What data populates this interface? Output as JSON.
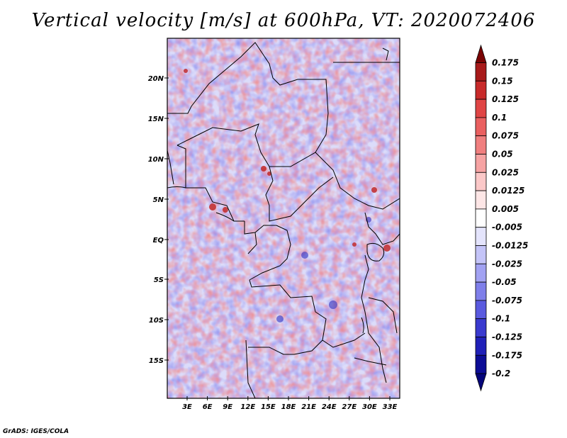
{
  "title": "Vertical velocity [m/s] at 600hPa, VT: 2020072406",
  "credit": "GrADS: IGES/COLA",
  "map": {
    "lat_labels": [
      "20N",
      "15N",
      "10N",
      "5N",
      "EQ",
      "5S",
      "10S",
      "15S"
    ],
    "lon_labels": [
      "3E",
      "6E",
      "9E",
      "12E",
      "15E",
      "18E",
      "21E",
      "24E",
      "27E",
      "30E",
      "33E"
    ],
    "colors": {
      "positive": "#e8423c",
      "negative": "#4a4ae0"
    }
  },
  "colorbar": {
    "labels": [
      "0.175",
      "0.15",
      "0.125",
      "0.1",
      "0.075",
      "0.05",
      "0.025",
      "0.0125",
      "0.005",
      "-0.005",
      "-0.0125",
      "-0.025",
      "-0.05",
      "-0.075",
      "-0.1",
      "-0.125",
      "-0.175",
      "-0.2"
    ],
    "colors": [
      "#7a0404",
      "#a81a1a",
      "#c82a2a",
      "#e04545",
      "#ea6060",
      "#f07f7f",
      "#f6a3a3",
      "#fbc8c8",
      "#fde6e6",
      "#ffffff",
      "#e4e4fc",
      "#c4c4f8",
      "#a2a2f2",
      "#7f7fea",
      "#5a5adf",
      "#3a3acf",
      "#2020b8",
      "#0d0d96",
      "#05057a"
    ]
  }
}
